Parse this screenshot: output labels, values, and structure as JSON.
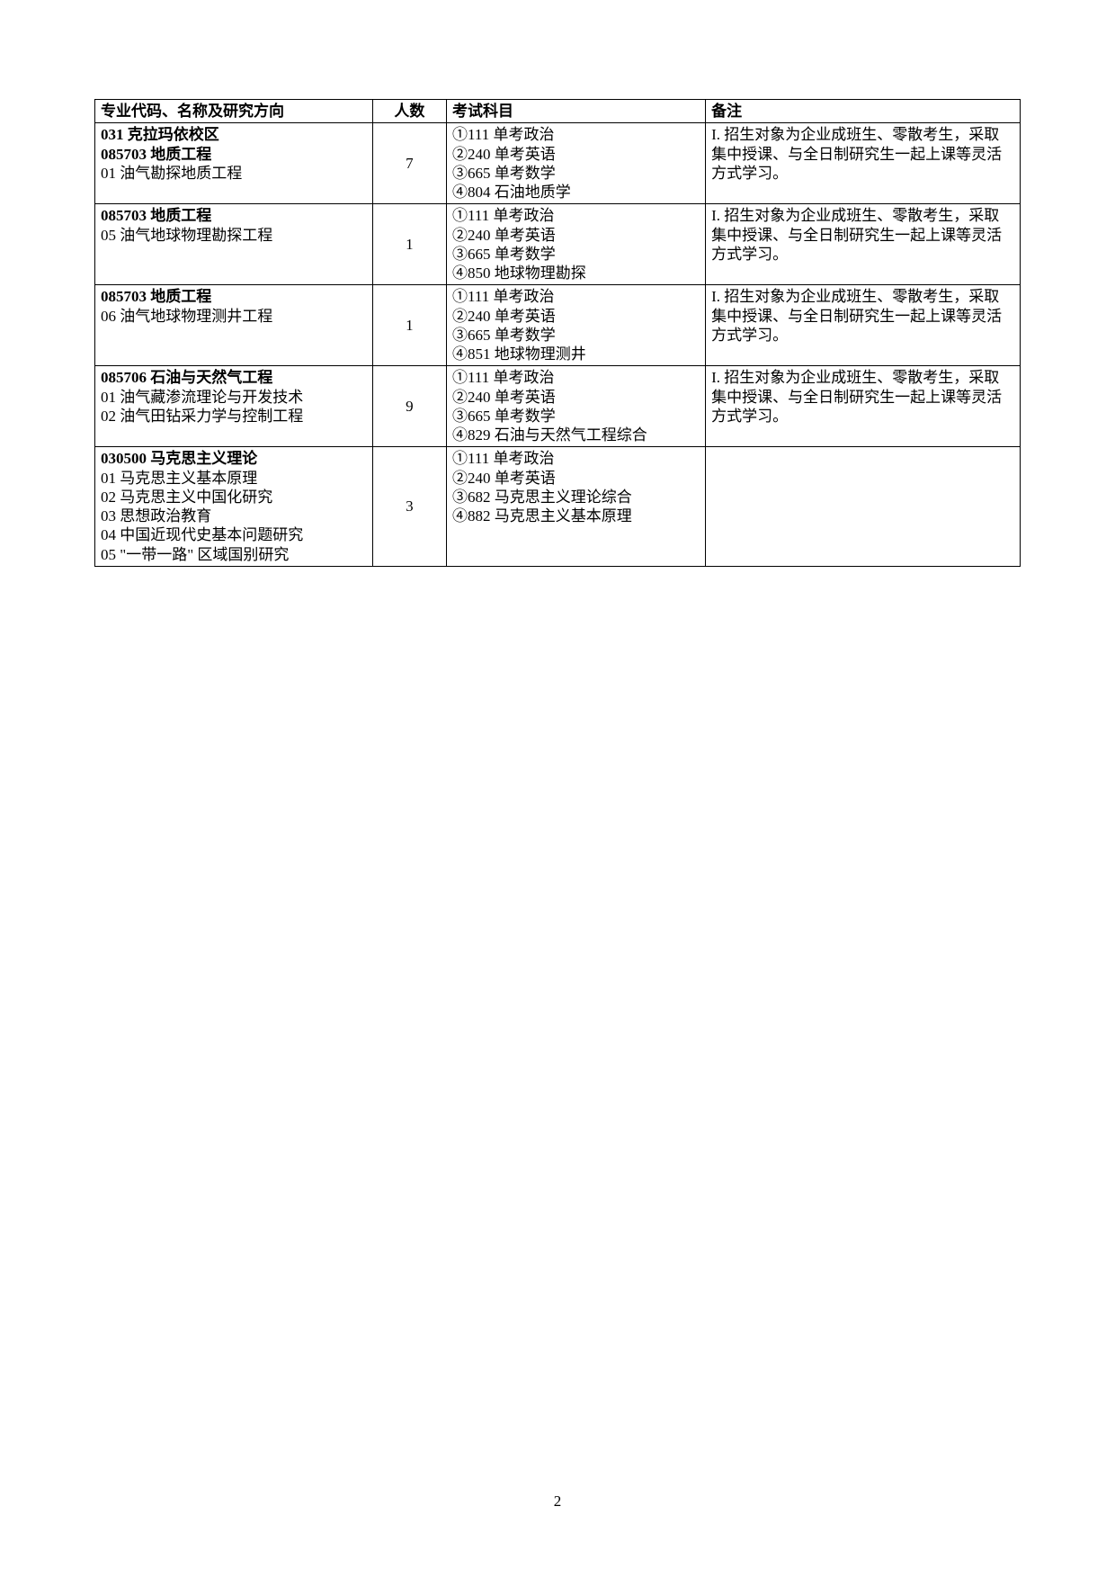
{
  "headers": {
    "major": "专业代码、名称及研究方向",
    "count": "人数",
    "subjects": "考试科目",
    "notes": "备注"
  },
  "rows": [
    {
      "major": {
        "bold1": "031 克拉玛依校区",
        "bold2": "085703 地质工程",
        "line1": "01 油气勘探地质工程"
      },
      "count": "7",
      "subjects": {
        "s1": "①111 单考政治",
        "s2": "②240 单考英语",
        "s3": "③665 单考数学",
        "s4": "④804 石油地质学"
      },
      "notes": {
        "n1": "I. 招生对象为企业成班生、零散考生，采取集中授课、与全日制研究生一起上课等灵活方式学习。"
      }
    },
    {
      "major": {
        "bold1": "085703 地质工程",
        "line1": "05 油气地球物理勘探工程"
      },
      "count": "1",
      "subjects": {
        "s1": "①111 单考政治",
        "s2": "②240 单考英语",
        "s3": "③665 单考数学",
        "s4": "④850 地球物理勘探"
      },
      "notes": {
        "n1": "I. 招生对象为企业成班生、零散考生，采取集中授课、与全日制研究生一起上课等灵活方式学习。"
      }
    },
    {
      "major": {
        "bold1": "085703 地质工程",
        "line1": "06 油气地球物理测井工程"
      },
      "count": "1",
      "subjects": {
        "s1": "①111 单考政治",
        "s2": "②240 单考英语",
        "s3": "③665 单考数学",
        "s4": "④851 地球物理测井"
      },
      "notes": {
        "n1": "I. 招生对象为企业成班生、零散考生，采取集中授课、与全日制研究生一起上课等灵活方式学习。"
      }
    },
    {
      "major": {
        "bold1": "085706 石油与天然气工程",
        "line1": "01 油气藏渗流理论与开发技术",
        "line2": "02 油气田钻采力学与控制工程"
      },
      "count": "9",
      "subjects": {
        "s1": "①111 单考政治",
        "s2": "②240 单考英语",
        "s3": "③665 单考数学",
        "s4": "④829 石油与天然气工程综合"
      },
      "notes": {
        "n1": "I. 招生对象为企业成班生、零散考生，采取集中授课、与全日制研究生一起上课等灵活方式学习。"
      }
    },
    {
      "major": {
        "bold1": "030500 马克思主义理论",
        "line1": "01 马克思主义基本原理",
        "line2": "02 马克思主义中国化研究",
        "line3": "03 思想政治教育",
        "line4": "04 中国近现代史基本问题研究",
        "line5": "05 \"一带一路\" 区域国别研究"
      },
      "count": "3",
      "subjects": {
        "s1": "①111 单考政治",
        "s2": "②240 单考英语",
        "s3": "③682 马克思主义理论综合",
        "s4": "④882 马克思主义基本原理"
      },
      "notes": {
        "n1": ""
      }
    }
  ],
  "pageNumber": "2"
}
